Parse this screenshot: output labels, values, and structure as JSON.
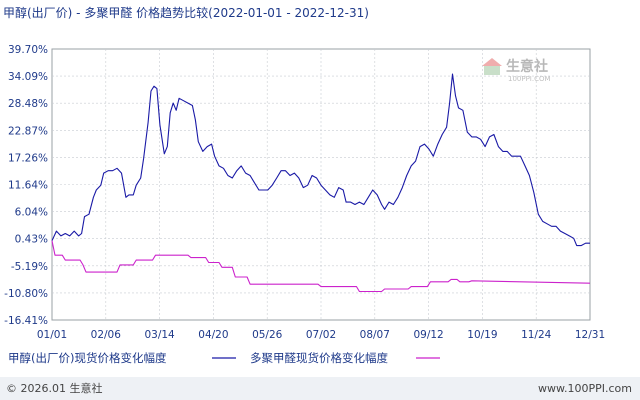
{
  "chart_data": {
    "type": "line",
    "title": "甲醇(出厂价) - 多聚甲醛 价格趋势比较(2022-01-01 - 2022-12-31)",
    "ylim": [
      -16.41,
      39.7
    ],
    "yticks": [
      "39.70%",
      "34.09%",
      "28.48%",
      "22.87%",
      "17.26%",
      "11.64%",
      "6.04%",
      "0.43%",
      "-5.19%",
      "-10.80%",
      "-16.41%"
    ],
    "xticks": [
      "01/01",
      "02/06",
      "03/14",
      "04/20",
      "05/26",
      "07/02",
      "08/07",
      "09/12",
      "10/19",
      "11/24",
      "12/31"
    ],
    "grid": true,
    "legend_position": "bottom",
    "series": [
      {
        "name": "甲醇(出厂价)现货价格变化幅度",
        "color": "#1a1aa6",
        "points": [
          [
            "2022-01-01",
            0.0
          ],
          [
            "2022-01-04",
            2.0
          ],
          [
            "2022-01-07",
            1.0
          ],
          [
            "2022-01-10",
            1.5
          ],
          [
            "2022-01-13",
            1.0
          ],
          [
            "2022-01-16",
            2.0
          ],
          [
            "2022-01-19",
            1.0
          ],
          [
            "2022-01-21",
            1.5
          ],
          [
            "2022-01-23",
            5.0
          ],
          [
            "2022-01-26",
            5.5
          ],
          [
            "2022-01-29",
            9.0
          ],
          [
            "2022-01-31",
            10.5
          ],
          [
            "2022-02-03",
            11.5
          ],
          [
            "2022-02-05",
            14.0
          ],
          [
            "2022-02-08",
            14.5
          ],
          [
            "2022-02-11",
            14.5
          ],
          [
            "2022-02-14",
            15.0
          ],
          [
            "2022-02-17",
            14.0
          ],
          [
            "2022-02-20",
            9.0
          ],
          [
            "2022-02-22",
            9.5
          ],
          [
            "2022-02-25",
            9.5
          ],
          [
            "2022-02-27",
            11.5
          ],
          [
            "2022-03-02",
            13.0
          ],
          [
            "2022-03-04",
            17.0
          ],
          [
            "2022-03-07",
            24.5
          ],
          [
            "2022-03-09",
            31.0
          ],
          [
            "2022-03-11",
            32.0
          ],
          [
            "2022-03-13",
            31.5
          ],
          [
            "2022-03-15",
            24.0
          ],
          [
            "2022-03-18",
            18.0
          ],
          [
            "2022-03-20",
            19.5
          ],
          [
            "2022-03-22",
            26.5
          ],
          [
            "2022-03-24",
            28.5
          ],
          [
            "2022-03-26",
            27.0
          ],
          [
            "2022-03-28",
            29.5
          ],
          [
            "2022-03-31",
            29.0
          ],
          [
            "2022-04-03",
            28.5
          ],
          [
            "2022-04-06",
            28.0
          ],
          [
            "2022-04-08",
            25.0
          ],
          [
            "2022-04-10",
            20.5
          ],
          [
            "2022-04-13",
            18.5
          ],
          [
            "2022-04-16",
            19.5
          ],
          [
            "2022-04-19",
            20.0
          ],
          [
            "2022-04-21",
            17.5
          ],
          [
            "2022-04-24",
            15.5
          ],
          [
            "2022-04-27",
            15.0
          ],
          [
            "2022-04-30",
            13.5
          ],
          [
            "2022-05-03",
            13.0
          ],
          [
            "2022-05-06",
            14.5
          ],
          [
            "2022-05-09",
            15.5
          ],
          [
            "2022-05-12",
            14.0
          ],
          [
            "2022-05-15",
            13.5
          ],
          [
            "2022-05-18",
            12.0
          ],
          [
            "2022-05-21",
            10.5
          ],
          [
            "2022-05-24",
            10.5
          ],
          [
            "2022-05-27",
            10.5
          ],
          [
            "2022-05-30",
            11.5
          ],
          [
            "2022-06-02",
            13.0
          ],
          [
            "2022-06-05",
            14.5
          ],
          [
            "2022-06-08",
            14.5
          ],
          [
            "2022-06-11",
            13.5
          ],
          [
            "2022-06-14",
            14.0
          ],
          [
            "2022-06-17",
            13.0
          ],
          [
            "2022-06-20",
            11.0
          ],
          [
            "2022-06-23",
            11.5
          ],
          [
            "2022-06-26",
            13.5
          ],
          [
            "2022-06-29",
            13.0
          ],
          [
            "2022-07-02",
            11.5
          ],
          [
            "2022-07-05",
            10.5
          ],
          [
            "2022-07-08",
            9.5
          ],
          [
            "2022-07-11",
            9.0
          ],
          [
            "2022-07-14",
            11.0
          ],
          [
            "2022-07-17",
            10.5
          ],
          [
            "2022-07-19",
            8.0
          ],
          [
            "2022-07-22",
            8.0
          ],
          [
            "2022-07-25",
            7.5
          ],
          [
            "2022-07-28",
            8.0
          ],
          [
            "2022-07-31",
            7.5
          ],
          [
            "2022-08-03",
            9.0
          ],
          [
            "2022-08-06",
            10.5
          ],
          [
            "2022-08-09",
            9.5
          ],
          [
            "2022-08-12",
            7.5
          ],
          [
            "2022-08-14",
            6.5
          ],
          [
            "2022-08-17",
            8.0
          ],
          [
            "2022-08-20",
            7.5
          ],
          [
            "2022-08-23",
            9.0
          ],
          [
            "2022-08-26",
            11.0
          ],
          [
            "2022-08-29",
            13.5
          ],
          [
            "2022-09-01",
            15.5
          ],
          [
            "2022-09-04",
            16.5
          ],
          [
            "2022-09-07",
            19.5
          ],
          [
            "2022-09-10",
            20.0
          ],
          [
            "2022-09-13",
            19.0
          ],
          [
            "2022-09-16",
            17.5
          ],
          [
            "2022-09-19",
            20.0
          ],
          [
            "2022-09-22",
            22.0
          ],
          [
            "2022-09-25",
            23.5
          ],
          [
            "2022-09-27",
            28.5
          ],
          [
            "2022-09-29",
            34.5
          ],
          [
            "2022-10-01",
            30.0
          ],
          [
            "2022-10-03",
            27.5
          ],
          [
            "2022-10-06",
            27.0
          ],
          [
            "2022-10-09",
            22.5
          ],
          [
            "2022-10-12",
            21.5
          ],
          [
            "2022-10-15",
            21.5
          ],
          [
            "2022-10-18",
            21.0
          ],
          [
            "2022-10-21",
            19.5
          ],
          [
            "2022-10-24",
            21.5
          ],
          [
            "2022-10-27",
            22.0
          ],
          [
            "2022-10-30",
            19.5
          ],
          [
            "2022-11-02",
            18.5
          ],
          [
            "2022-11-05",
            18.5
          ],
          [
            "2022-11-08",
            17.5
          ],
          [
            "2022-11-11",
            17.5
          ],
          [
            "2022-11-14",
            17.5
          ],
          [
            "2022-11-17",
            15.5
          ],
          [
            "2022-11-20",
            13.5
          ],
          [
            "2022-11-23",
            10.0
          ],
          [
            "2022-11-26",
            5.5
          ],
          [
            "2022-11-29",
            4.0
          ],
          [
            "2022-12-02",
            3.5
          ],
          [
            "2022-12-05",
            3.0
          ],
          [
            "2022-12-08",
            3.0
          ],
          [
            "2022-12-11",
            2.0
          ],
          [
            "2022-12-14",
            1.5
          ],
          [
            "2022-12-17",
            1.0
          ],
          [
            "2022-12-20",
            0.5
          ],
          [
            "2022-12-22",
            -1.0
          ],
          [
            "2022-12-25",
            -1.0
          ],
          [
            "2022-12-28",
            -0.5
          ],
          [
            "2022-12-31",
            -0.5
          ]
        ]
      },
      {
        "name": "多聚甲醛现货价格变化幅度",
        "color": "#cc22cc",
        "points": [
          [
            "2022-01-01",
            0.0
          ],
          [
            "2022-01-03",
            -3.0
          ],
          [
            "2022-01-08",
            -3.0
          ],
          [
            "2022-01-10",
            -4.0
          ],
          [
            "2022-01-20",
            -4.0
          ],
          [
            "2022-01-22",
            -5.0
          ],
          [
            "2022-01-24",
            -6.5
          ],
          [
            "2022-02-14",
            -6.5
          ],
          [
            "2022-02-16",
            -5.0
          ],
          [
            "2022-02-25",
            -5.0
          ],
          [
            "2022-02-27",
            -4.0
          ],
          [
            "2022-03-10",
            -4.0
          ],
          [
            "2022-03-12",
            -3.0
          ],
          [
            "2022-04-03",
            -3.0
          ],
          [
            "2022-04-05",
            -3.5
          ],
          [
            "2022-04-15",
            -3.5
          ],
          [
            "2022-04-17",
            -4.5
          ],
          [
            "2022-04-24",
            -4.5
          ],
          [
            "2022-04-26",
            -5.5
          ],
          [
            "2022-05-03",
            -5.5
          ],
          [
            "2022-05-05",
            -7.5
          ],
          [
            "2022-05-13",
            -7.5
          ],
          [
            "2022-05-15",
            -9.0
          ],
          [
            "2022-06-30",
            -9.0
          ],
          [
            "2022-07-02",
            -9.5
          ],
          [
            "2022-07-26",
            -9.5
          ],
          [
            "2022-07-28",
            -10.5
          ],
          [
            "2022-08-12",
            -10.5
          ],
          [
            "2022-08-14",
            -10.0
          ],
          [
            "2022-08-30",
            -10.0
          ],
          [
            "2022-09-01",
            -9.5
          ],
          [
            "2022-09-12",
            -9.5
          ],
          [
            "2022-09-14",
            -8.5
          ],
          [
            "2022-09-26",
            -8.5
          ],
          [
            "2022-09-28",
            -8.0
          ],
          [
            "2022-10-02",
            -8.0
          ],
          [
            "2022-10-04",
            -8.5
          ],
          [
            "2022-10-10",
            -8.5
          ],
          [
            "2022-10-12",
            -8.3
          ],
          [
            "2022-12-31",
            -8.8
          ]
        ]
      }
    ]
  },
  "footer": {
    "copyright": "© 2026.01 生意社",
    "url": "www.100PPI.com"
  },
  "watermark": {
    "name_cn": "生意社",
    "name_en": "100PPI.COM"
  }
}
